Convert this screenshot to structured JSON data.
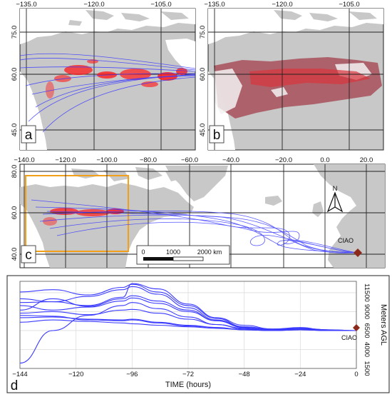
{
  "colors": {
    "land": "#c8c8c8",
    "water": "#ffffff",
    "trajectory": "#3b3bff",
    "fire": "#ff1a1a",
    "box": "#f2a019",
    "site": "#8b2a1a"
  },
  "panel_a": {
    "label": "a",
    "top_ticks": [
      "−135.0",
      "−120.0",
      "−105.0"
    ],
    "left_ticks": [
      "75.0",
      "60.0",
      "45.0"
    ]
  },
  "panel_b": {
    "label": "b",
    "top_ticks": [
      "−135.0",
      "−120.0",
      "−105.0"
    ],
    "left_ticks": [
      "75.0",
      "60.0",
      "45.0"
    ]
  },
  "panel_c": {
    "label": "c",
    "top_ticks": [
      "−140.0",
      "−120.0",
      "−100.0",
      "−80.0",
      "−60.0",
      "−40.0",
      "−20.0",
      "0.0",
      "20.0"
    ],
    "left_ticks": [
      "80.0",
      "60.0",
      "40.0"
    ],
    "scale_labels": [
      "0",
      "1000",
      "2000 km"
    ],
    "north_label": "N",
    "site_label": "CIAO"
  },
  "panel_d": {
    "label": "d",
    "site_label": "CIAO"
  },
  "chart_data": {
    "type": "line",
    "xlabel": "TIME (hours)",
    "ylabel": "Meters AGL",
    "x_ticks": [
      -144,
      -120,
      -96,
      -72,
      -48,
      -24,
      0
    ],
    "x_tick_labels": [
      "−144",
      "−120",
      "−96",
      "−72",
      "−48",
      "−24",
      "0"
    ],
    "y_ticks": [
      1500,
      4000,
      6500,
      9000,
      11500
    ],
    "y_tick_labels": [
      "1500",
      "4000",
      "6500",
      "9000",
      "11500"
    ],
    "xlim": [
      -144,
      0
    ],
    "ylim": [
      1500,
      13000
    ],
    "grid": true,
    "series": [
      {
        "x": [
          -144,
          -130,
          -115,
          -100,
          -96,
          -85,
          -72,
          -60,
          -48,
          -36,
          -24,
          -12,
          0
        ],
        "y": [
          2200,
          6500,
          8500,
          9800,
          10200,
          9400,
          8300,
          7300,
          6700,
          6500,
          6600,
          6500,
          6500
        ]
      },
      {
        "x": [
          -144,
          -130,
          -115,
          -100,
          -96,
          -85,
          -72,
          -60,
          -48,
          -36,
          -24,
          -12,
          0
        ],
        "y": [
          11600,
          11900,
          11200,
          12200,
          12600,
          11600,
          9800,
          8100,
          7000,
          6700,
          6800,
          6600,
          6500
        ]
      },
      {
        "x": [
          -144,
          -130,
          -115,
          -100,
          -96,
          -85,
          -72,
          -60,
          -48,
          -36,
          -24,
          -12,
          0
        ],
        "y": [
          10700,
          10300,
          9800,
          10900,
          12700,
          12000,
          10000,
          8200,
          7200,
          6700,
          6900,
          6500,
          6500
        ]
      },
      {
        "x": [
          -144,
          -130,
          -115,
          -100,
          -96,
          -85,
          -72,
          -60,
          -48,
          -36,
          -24,
          -12,
          0
        ],
        "y": [
          9800,
          9200,
          9600,
          10400,
          10800,
          10100,
          9000,
          7800,
          6900,
          6600,
          6700,
          6500,
          6500
        ]
      },
      {
        "x": [
          -144,
          -130,
          -115,
          -100,
          -96,
          -85,
          -72,
          -60,
          -48,
          -36,
          -24,
          -12,
          0
        ],
        "y": [
          8800,
          9000,
          8600,
          9200,
          9300,
          8800,
          8000,
          7300,
          6800,
          6500,
          6600,
          6500,
          6500
        ]
      },
      {
        "x": [
          -144,
          -130,
          -115,
          -100,
          -96,
          -85,
          -72,
          -60,
          -48,
          -36,
          -24,
          -12,
          0
        ],
        "y": [
          8200,
          8300,
          8000,
          7900,
          8000,
          7600,
          7200,
          6900,
          6600,
          6500,
          6700,
          6500,
          6500
        ]
      },
      {
        "x": [
          -144,
          -130,
          -115,
          -100,
          -96,
          -85,
          -72,
          -60,
          -48,
          -36,
          -24,
          -12,
          0
        ],
        "y": [
          9200,
          10700,
          9700,
          10700,
          11100,
          10400,
          9200,
          7800,
          6900,
          6600,
          6800,
          6600,
          6500
        ]
      },
      {
        "x": [
          -144,
          -130,
          -115,
          -100,
          -96,
          -85,
          -72,
          -60,
          -48,
          -36,
          -24,
          -12,
          0
        ],
        "y": [
          7600,
          7900,
          7700,
          7500,
          7400,
          7200,
          7000,
          6800,
          6600,
          6500,
          6600,
          6500,
          6500
        ]
      },
      {
        "x": [
          -144,
          -130,
          -115,
          -100,
          -96,
          -85,
          -72,
          -60,
          -48,
          -36,
          -24,
          -12,
          0
        ],
        "y": [
          10200,
          10300,
          11000,
          11900,
          12300,
          11300,
          9500,
          7900,
          7000,
          6600,
          6800,
          6500,
          6500
        ]
      },
      {
        "x": [
          -144,
          -130,
          -115,
          -100,
          -96,
          -85,
          -72,
          -60,
          -48,
          -36,
          -24,
          -12,
          0
        ],
        "y": [
          8500,
          8400,
          7900,
          7800,
          7900,
          7500,
          7100,
          6900,
          6600,
          6500,
          6700,
          6500,
          6500
        ]
      }
    ]
  }
}
